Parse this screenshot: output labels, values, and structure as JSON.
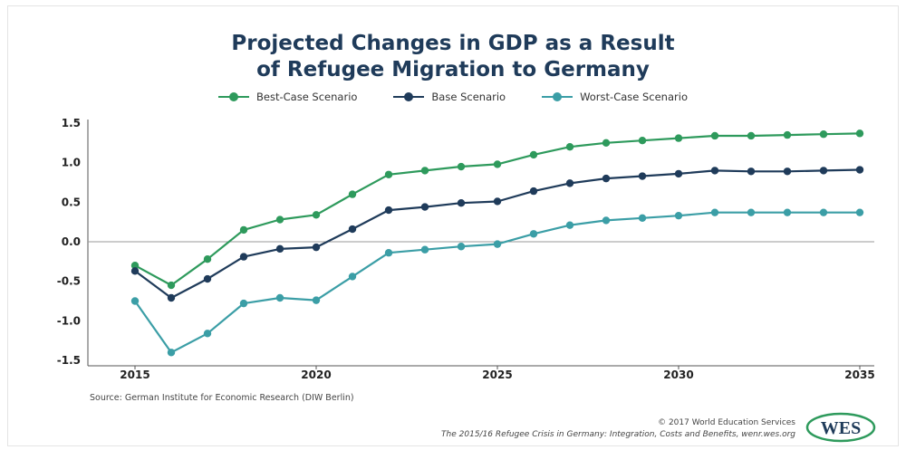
{
  "title_line1": "Projected Changes in GDP as a Result",
  "title_line2": "of Refugee Migration to Germany",
  "source": "Source: German Institute for Economic Research (DIW Berlin)",
  "copyright": "© 2017 World Education Services",
  "credit": "The 2015/16 Refugee Crisis in Germany: Integration, Costs and Benefits, wenr.wes.org",
  "logo_text": "WES",
  "colors": {
    "best": "#2e9a5c",
    "base": "#1f3b5a",
    "worst": "#3b9ea6",
    "zero_line": "#999999",
    "axis": "#555555"
  },
  "chart_data": {
    "type": "line",
    "x": [
      2015,
      2016,
      2017,
      2018,
      2019,
      2020,
      2021,
      2022,
      2023,
      2024,
      2025,
      2026,
      2027,
      2028,
      2029,
      2030,
      2031,
      2032,
      2033,
      2034,
      2035
    ],
    "x_ticks": [
      "2015",
      "2020",
      "2025",
      "2030",
      "2035"
    ],
    "y_ticks": [
      "1.5",
      "1.0",
      "0.5",
      "0.0",
      "-0.5",
      "-1.0",
      "-1.5"
    ],
    "xlim": [
      2013.7,
      2035.4
    ],
    "ylim": [
      -1.5,
      1.5
    ],
    "legend_position": "top-center",
    "grid": false,
    "series": [
      {
        "name": "Best-Case Scenario",
        "color": "#2e9a5c",
        "values": [
          -0.3,
          -0.55,
          -0.22,
          0.15,
          0.28,
          0.34,
          0.6,
          0.85,
          0.9,
          0.95,
          0.98,
          1.1,
          1.2,
          1.25,
          1.28,
          1.31,
          1.34,
          1.34,
          1.35,
          1.36,
          1.37
        ]
      },
      {
        "name": "Base Scenario",
        "color": "#1f3b5a",
        "values": [
          -0.37,
          -0.71,
          -0.47,
          -0.19,
          -0.09,
          -0.07,
          0.16,
          0.4,
          0.44,
          0.49,
          0.51,
          0.64,
          0.74,
          0.8,
          0.83,
          0.86,
          0.9,
          0.89,
          0.89,
          0.9,
          0.91
        ]
      },
      {
        "name": "Worst-Case Scenario",
        "color": "#3b9ea6",
        "values": [
          -0.75,
          -1.4,
          -1.16,
          -0.78,
          -0.71,
          -0.74,
          -0.44,
          -0.14,
          -0.1,
          -0.06,
          -0.03,
          0.1,
          0.21,
          0.27,
          0.3,
          0.33,
          0.37,
          0.37,
          0.37,
          0.37,
          0.37
        ]
      }
    ]
  }
}
